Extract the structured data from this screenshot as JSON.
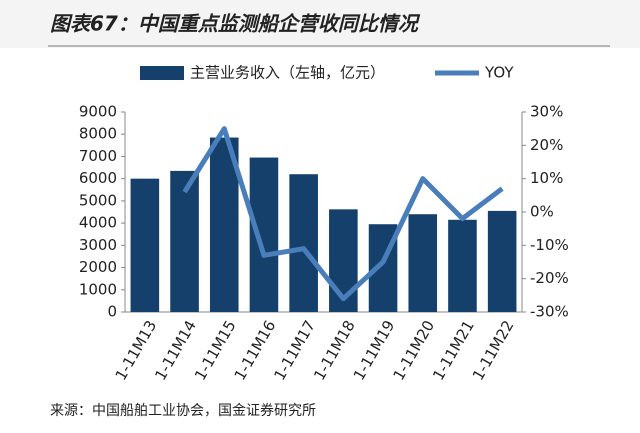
{
  "chart_data": {
    "type": "bar",
    "title": "图表67：中国重点监测船企营收同比情况",
    "source": "来源：中国船舶工业协会，国金证券研究所",
    "categories": [
      "1-11M13",
      "1-11M14",
      "1-11M15",
      "1-11M16",
      "1-11M17",
      "1-11M18",
      "1-11M19",
      "1-11M20",
      "1-11M21",
      "1-11M22"
    ],
    "series": [
      {
        "name": "主营业务收入（左轴，亿元）",
        "type": "bar",
        "color": "#14406b",
        "values": [
          6000,
          6350,
          7850,
          6950,
          6200,
          4620,
          3950,
          4400,
          4150,
          4550
        ]
      },
      {
        "name": "YOY",
        "type": "line",
        "axis": "y2",
        "color": "#4a7ebb",
        "values": [
          null,
          6,
          25,
          -13,
          -11,
          -26,
          -15,
          10,
          -2,
          7
        ]
      }
    ],
    "ylim": [
      0,
      9000
    ],
    "yticks": [
      0,
      1000,
      2000,
      3000,
      4000,
      5000,
      6000,
      7000,
      8000,
      9000
    ],
    "y2lim": [
      -30,
      30
    ],
    "y2ticks": [
      {
        "value": -30,
        "label": "-30%"
      },
      {
        "value": -20,
        "label": "-20%"
      },
      {
        "value": -10,
        "label": "-10%"
      },
      {
        "value": 0,
        "label": "0%"
      },
      {
        "value": 10,
        "label": "10%"
      },
      {
        "value": 20,
        "label": "20%"
      },
      {
        "value": 30,
        "label": "30%"
      }
    ]
  }
}
